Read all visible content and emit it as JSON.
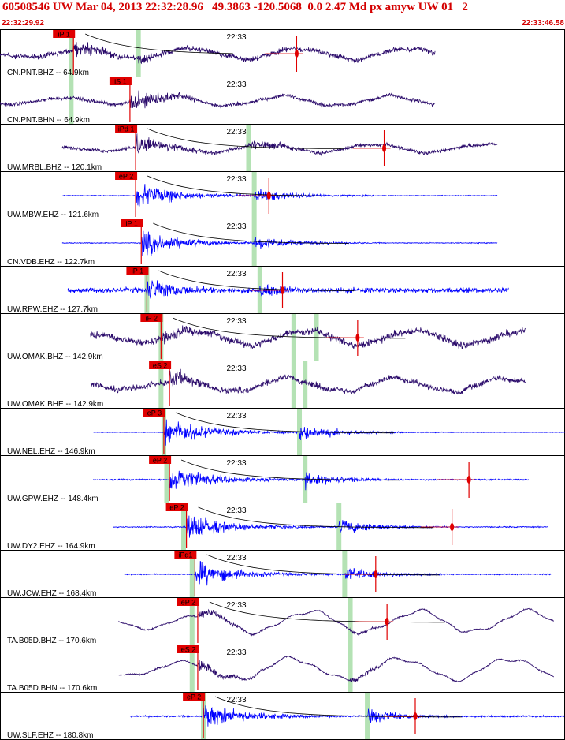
{
  "header": {
    "title": "60508546 UW Mar 04, 2013 22:32:28.96   49.3863 -120.5068  0.0 2.47 Md px amyw UW 01   2",
    "start_time": "22:32:29.92",
    "end_time": "22:33:46.58"
  },
  "colors": {
    "header_text": "#d40000",
    "border": "#000000",
    "trace_blue": "#0000ff",
    "trace_dark": "#2a0a6a",
    "pick_red": "#e00000",
    "green_window": "#9bd89b",
    "envelope": "#000000"
  },
  "tick_label": "22:33",
  "channels": [
    {
      "label": "CN.PNT.BHZ -- 64.9km",
      "pick": "iP 1",
      "color": "dark",
      "start": 0.0,
      "end": 0.77,
      "onset": 0.13,
      "s": 0.245,
      "marker": 0.525,
      "noise": 0.18,
      "sig": 0.55,
      "lp": 0.45,
      "green": [
        0.126,
        0.245
      ]
    },
    {
      "label": "CN.PNT.BHN -- 64.9km",
      "pick": "iS 1",
      "color": "dark",
      "start": 0.0,
      "end": 0.77,
      "onset": 0.23,
      "s": 0.245,
      "marker": null,
      "noise": 0.12,
      "sig": 0.5,
      "lp": 0.4,
      "green": [
        0.126
      ]
    },
    {
      "label": "UW.MRBL.BHZ -- 120.1km",
      "pick": "iPd 1",
      "color": "dark",
      "start": 0.11,
      "end": 0.88,
      "onset": 0.24,
      "s": 0.44,
      "marker": 0.68,
      "noise": 0.12,
      "sig": 0.7,
      "lp": 0.35,
      "green": [
        0.44
      ]
    },
    {
      "label": "UW.MBW.EHZ -- 121.6km",
      "pick": "eP 2",
      "color": "blue",
      "start": 0.11,
      "end": 0.88,
      "onset": 0.24,
      "s": 0.45,
      "marker": 0.476,
      "noise": 0.03,
      "sig": 0.85,
      "lp": 0.0,
      "green": [
        0.45
      ]
    },
    {
      "label": "CN.VDB.EHZ -- 122.7km",
      "pick": "iP 1",
      "color": "blue",
      "start": 0.11,
      "end": 0.88,
      "onset": 0.25,
      "s": 0.45,
      "marker": null,
      "noise": 0.03,
      "sig": 0.85,
      "lp": 0.0,
      "green": [
        0.45
      ]
    },
    {
      "label": "UW.RPW.EHZ -- 127.7km",
      "pick": "iP 1",
      "color": "blue",
      "start": 0.12,
      "end": 0.9,
      "onset": 0.26,
      "s": 0.46,
      "marker": 0.5,
      "noise": 0.18,
      "sig": 0.85,
      "lp": 0.0,
      "green": [
        0.26,
        0.46
      ]
    },
    {
      "label": "UW.OMAK.BHZ -- 142.9km",
      "pick": "iP 2",
      "color": "dark",
      "start": 0.16,
      "end": 0.93,
      "onset": 0.285,
      "s": 0.55,
      "marker": 0.633,
      "noise": 0.25,
      "sig": 0.55,
      "lp": 0.6,
      "green": [
        0.285,
        0.52,
        0.56
      ]
    },
    {
      "label": "UW.OMAK.BHE -- 142.9km",
      "pick": "eS 2",
      "color": "dark",
      "start": 0.16,
      "end": 0.93,
      "onset": 0.3,
      "s": 0.55,
      "marker": null,
      "noise": 0.2,
      "sig": 0.6,
      "lp": 0.55,
      "green": [
        0.285,
        0.52,
        0.54
      ]
    },
    {
      "label": "UW.NEL.EHZ -- 146.9km",
      "pick": "eP 3",
      "color": "blue",
      "start": 0.165,
      "end": 1.0,
      "onset": 0.29,
      "s": 0.53,
      "marker": null,
      "noise": 0.02,
      "sig": 0.95,
      "lp": 0.0,
      "green": [
        0.29,
        0.53
      ]
    },
    {
      "label": "UW.GPW.EHZ -- 148.4km",
      "pick": "eP 2",
      "color": "blue",
      "start": 0.165,
      "end": 0.935,
      "onset": 0.3,
      "s": 0.54,
      "marker": 0.83,
      "noise": 0.05,
      "sig": 0.9,
      "lp": 0.0,
      "green": [
        0.295,
        0.54
      ]
    },
    {
      "label": "UW.DY2.EHZ -- 164.9km",
      "pick": "eP 2",
      "color": "blue",
      "start": 0.2,
      "end": 0.97,
      "onset": 0.33,
      "s": 0.6,
      "marker": 0.8,
      "noise": 0.04,
      "sig": 0.9,
      "lp": 0.0,
      "green": [
        0.325,
        0.6
      ]
    },
    {
      "label": "UW.JCW.EHZ -- 168.4km",
      "pick": "iPd1",
      "color": "blue",
      "start": 0.22,
      "end": 0.975,
      "onset": 0.345,
      "s": 0.61,
      "marker": 0.665,
      "noise": 0.04,
      "sig": 0.85,
      "lp": 0.0,
      "green": [
        0.34,
        0.61
      ]
    },
    {
      "label": "TA.B05D.BHZ -- 170.6km",
      "pick": "eP 2",
      "color": "dark",
      "start": 0.21,
      "end": 0.98,
      "onset": 0.35,
      "s": 0.62,
      "marker": 0.685,
      "noise": 0.05,
      "sig": 0.3,
      "lp": 0.9,
      "green": [
        0.34,
        0.62
      ]
    },
    {
      "label": "TA.B05D.BHN -- 170.6km",
      "pick": "eS 2",
      "color": "dark",
      "start": 0.21,
      "end": 0.98,
      "onset": 0.35,
      "s": 0.62,
      "marker": null,
      "noise": 0.05,
      "sig": 0.35,
      "lp": 0.9,
      "green": [
        0.34,
        0.62
      ]
    },
    {
      "label": "UW.SLF.EHZ -- 180.8km",
      "pick": "eP 2",
      "color": "blue",
      "start": 0.23,
      "end": 1.0,
      "onset": 0.36,
      "s": 0.65,
      "marker": 0.735,
      "noise": 0.06,
      "sig": 0.9,
      "lp": 0.0,
      "green": [
        0.36,
        0.65
      ]
    }
  ]
}
